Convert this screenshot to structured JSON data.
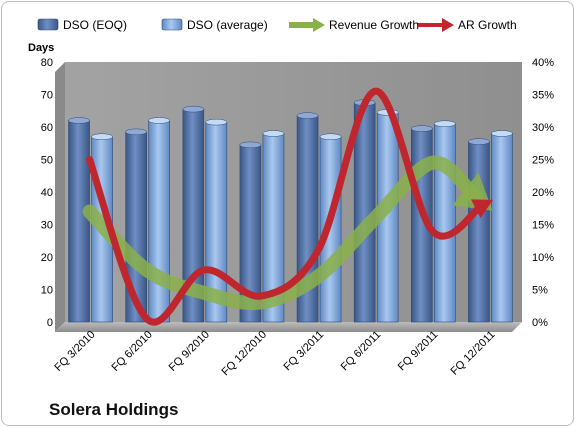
{
  "chart_data": {
    "type": "bar",
    "caption": "Solera Holdings",
    "ylabel": "Days",
    "ylim": [
      0,
      80
    ],
    "y_ticks": [
      0,
      10,
      20,
      30,
      40,
      50,
      60,
      70,
      80
    ],
    "y2lim": [
      0,
      40
    ],
    "y2_ticks": [
      "0%",
      "5%",
      "10%",
      "15%",
      "20%",
      "25%",
      "30%",
      "35%",
      "40%"
    ],
    "y2_unit": "%",
    "categories": [
      "FQ 3/2010",
      "FQ 6/2010",
      "FQ 9/2010",
      "FQ 12/2010",
      "FQ 3/2011",
      "FQ 6/2011",
      "FQ 9/2011",
      "FQ 12/2011"
    ],
    "grid": false,
    "legend_position": "top",
    "series": [
      {
        "name": "DSO (EOQ)",
        "kind": "bar",
        "axis": "left",
        "color": "#4f6fa3",
        "values": [
          62,
          58.5,
          65.5,
          54.5,
          63.5,
          67.5,
          59.5,
          55.5
        ]
      },
      {
        "name": "DSO (average)",
        "kind": "bar",
        "axis": "left",
        "color": "#7da4d8",
        "values": [
          57,
          62,
          61.5,
          58,
          57,
          64.5,
          61,
          58
        ]
      },
      {
        "name": "Revenue Growth",
        "kind": "line",
        "axis": "right",
        "color": "#8ab04a",
        "values": [
          17,
          8,
          4.5,
          3,
          7,
          16,
          24.5,
          17.5
        ]
      },
      {
        "name": "AR Growth",
        "kind": "line",
        "axis": "right",
        "color": "#c0262d",
        "values": [
          25,
          0.5,
          8,
          4,
          11,
          35.5,
          14,
          18.5
        ]
      }
    ]
  }
}
